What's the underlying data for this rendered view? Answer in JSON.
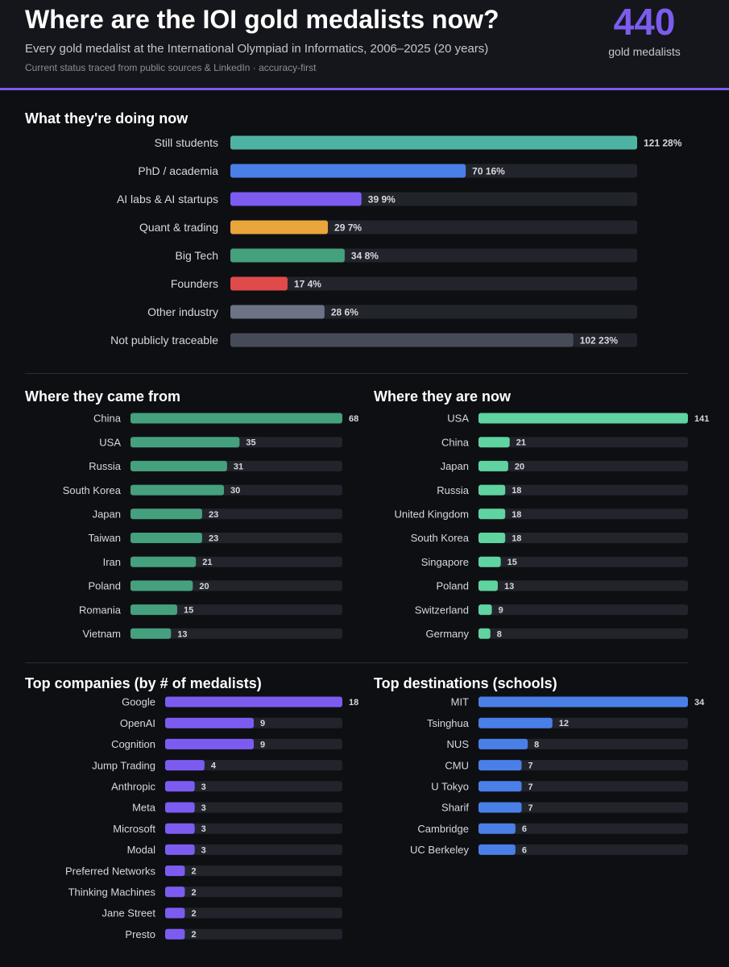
{
  "header": {
    "title": "Where are the IOI gold medalists now?",
    "subtitle": "Every gold medalist at the International Olympiad in Informatics, 2006–2025 (20 years)",
    "note": "Current status traced from public sources & LinkedIn · accuracy-first",
    "kpi_value": "440",
    "kpi_label": "gold medalists"
  },
  "colors": {
    "background": "#0e0f13",
    "track": "#22242b",
    "accent": "#7c5cf0"
  },
  "chart_data": [
    {
      "id": "doing",
      "type": "bar",
      "orientation": "horizontal",
      "title": "What they're doing now",
      "categories": [
        "Still students",
        "PhD / academia",
        "AI labs & AI startups",
        "Quant & trading",
        "Big Tech",
        "Founders",
        "Other industry",
        "Not publicly traceable"
      ],
      "values": [
        121,
        70,
        39,
        29,
        34,
        17,
        28,
        102
      ],
      "labels": [
        "121 28%",
        "70 16%",
        "39 9%",
        "29 7%",
        "34 8%",
        "17 4%",
        "28 6%",
        "102 23%"
      ],
      "colors": [
        "#4fb3a3",
        "#4a7fe8",
        "#7c5cf0",
        "#e9a63a",
        "#45a07e",
        "#e04a4a",
        "#6b7385",
        "#474b57"
      ],
      "xlim": [
        0,
        121
      ]
    },
    {
      "id": "from",
      "type": "bar",
      "orientation": "horizontal",
      "title": "Where they came from",
      "categories": [
        "China",
        "USA",
        "Russia",
        "South Korea",
        "Japan",
        "Taiwan",
        "Iran",
        "Poland",
        "Romania",
        "Vietnam"
      ],
      "values": [
        68,
        35,
        31,
        30,
        23,
        23,
        21,
        20,
        15,
        13
      ],
      "color": "#45a07e",
      "xlim": [
        0,
        68
      ]
    },
    {
      "id": "now",
      "type": "bar",
      "orientation": "horizontal",
      "title": "Where they are now",
      "categories": [
        "USA",
        "China",
        "Japan",
        "Russia",
        "United Kingdom",
        "South Korea",
        "Singapore",
        "Poland",
        "Switzerland",
        "Germany"
      ],
      "values": [
        141,
        21,
        20,
        18,
        18,
        18,
        15,
        13,
        9,
        8
      ],
      "color": "#5fd3a0",
      "xlim": [
        0,
        141
      ]
    },
    {
      "id": "companies",
      "type": "bar",
      "orientation": "horizontal",
      "title": "Top companies (by # of medalists)",
      "categories": [
        "Google",
        "OpenAI",
        "Cognition",
        "Jump Trading",
        "Anthropic",
        "Meta",
        "Microsoft",
        "Modal",
        "Preferred Networks",
        "Thinking Machines",
        "Jane Street",
        "Presto"
      ],
      "values": [
        18,
        9,
        9,
        4,
        3,
        3,
        3,
        3,
        2,
        2,
        2,
        2
      ],
      "color": "#7c5cf0",
      "xlim": [
        0,
        18
      ]
    },
    {
      "id": "schools",
      "type": "bar",
      "orientation": "horizontal",
      "title": "Top destinations (schools)",
      "categories": [
        "MIT",
        "Tsinghua",
        "NUS",
        "CMU",
        "U Tokyo",
        "Sharif",
        "Cambridge",
        "UC Berkeley"
      ],
      "values": [
        34,
        12,
        8,
        7,
        7,
        7,
        6,
        6
      ],
      "color": "#4a7fe8",
      "xlim": [
        0,
        34
      ]
    }
  ]
}
